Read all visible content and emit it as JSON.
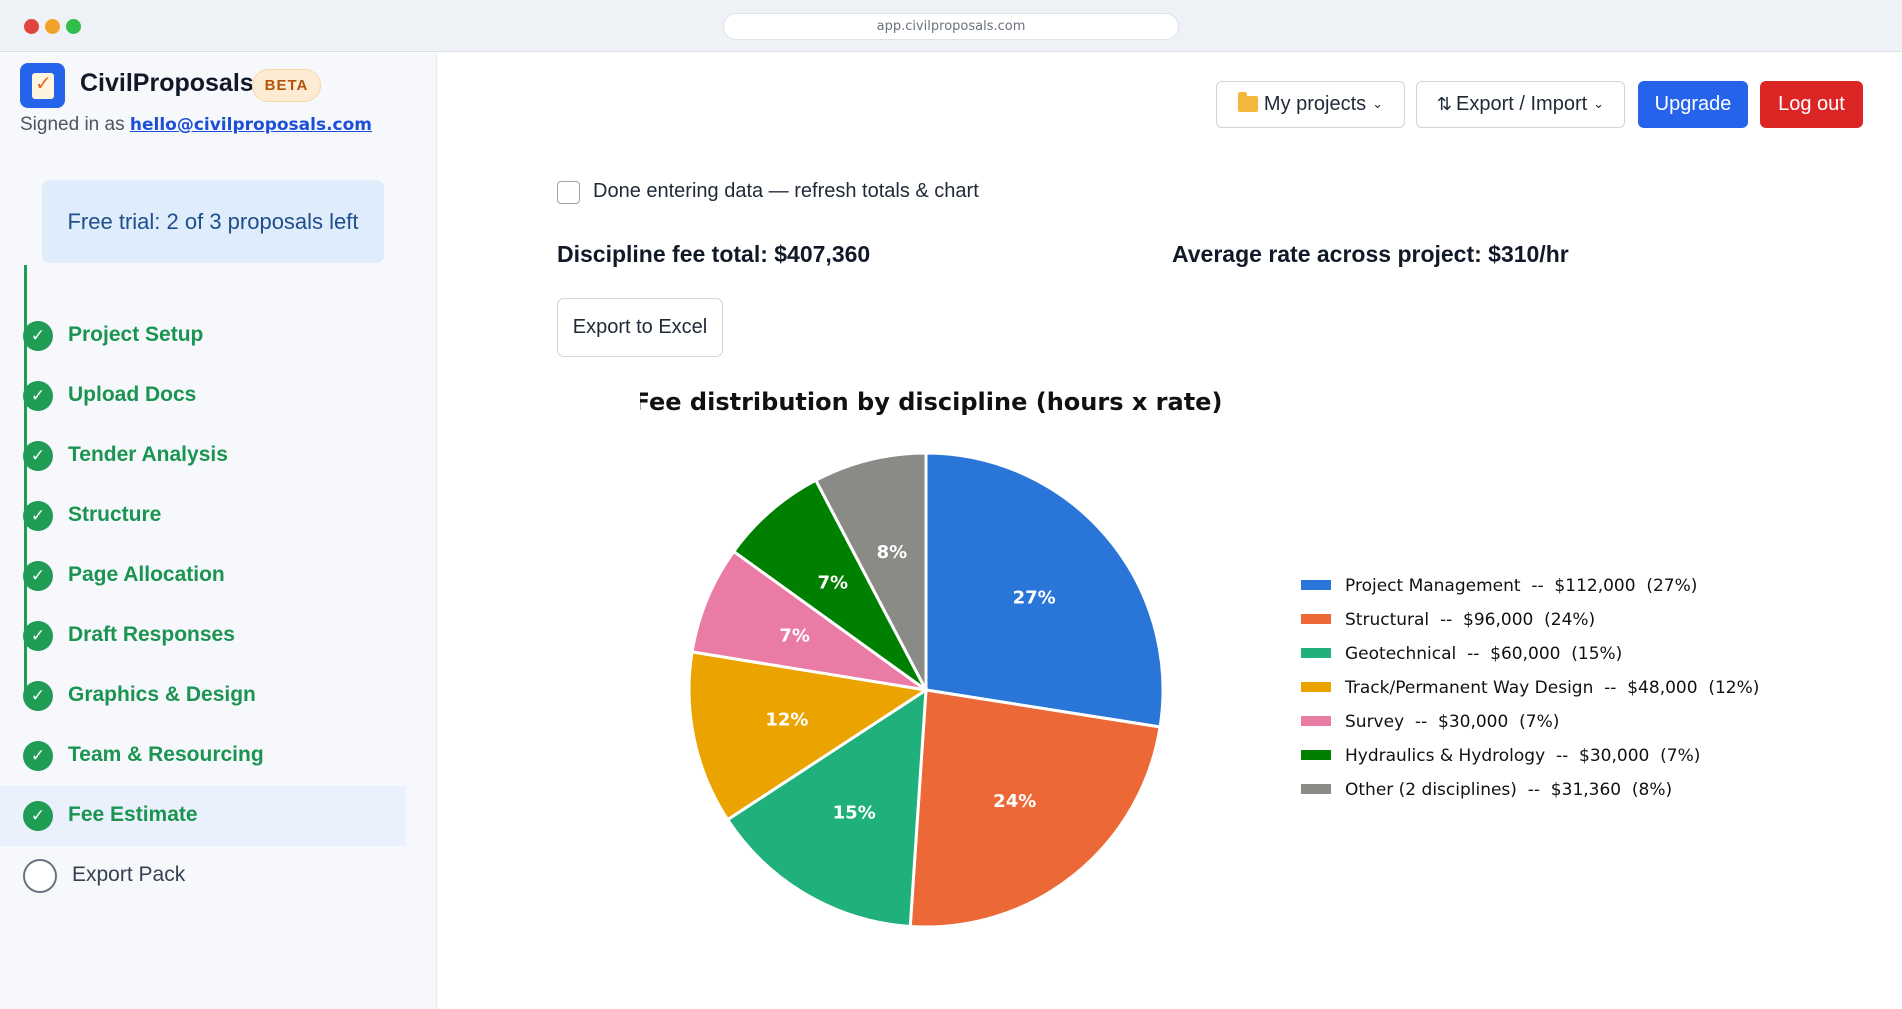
{
  "browser": {
    "url": "app.civilproposals.com"
  },
  "sidebar": {
    "app_name": "CivilProposals",
    "badge": "BETA",
    "signed_in_prefix": "Signed in as",
    "email": "hello@civilproposals.com",
    "trial_text": "Free trial: 2 of 3 proposals left",
    "steps": [
      {
        "label": "Project Setup",
        "done": true
      },
      {
        "label": "Upload Docs",
        "done": true
      },
      {
        "label": "Tender Analysis",
        "done": true
      },
      {
        "label": "Structure",
        "done": true
      },
      {
        "label": "Page Allocation",
        "done": true
      },
      {
        "label": "Draft Responses",
        "done": true
      },
      {
        "label": "Graphics & Design",
        "done": true
      },
      {
        "label": "Team & Resourcing",
        "done": true
      },
      {
        "label": "Fee Estimate",
        "done": true,
        "active": true
      },
      {
        "label": "Export Pack",
        "done": false
      }
    ],
    "check_glyph": "✓"
  },
  "toolbar": {
    "projects_label": "My projects",
    "export_import_label": "Export / Import",
    "upgrade_label": "Upgrade",
    "logout_label": "Log out",
    "icons": [
      "folder-icon",
      "sort-arrows-icon",
      "chevron-down-icon"
    ]
  },
  "main": {
    "checkbox_label": "Done entering data — refresh totals & chart",
    "checkbox_checked": false,
    "discipline_total": "Discipline fee total: $407,360",
    "average_rate": "Average rate across project: $310/hr",
    "export_excel_label": "Export to Excel"
  },
  "chart_data": {
    "type": "pie",
    "title": "Fee distribution by discipline (hours x rate)",
    "slices": [
      {
        "name": "Project Management",
        "value": 112000,
        "label": "Project Management  --  $112,000  (27%)",
        "pct_label": "27%",
        "color": "#2a76d8"
      },
      {
        "name": "Structural",
        "value": 96000,
        "label": "Structural  --  $96,000  (24%)",
        "pct_label": "24%",
        "color": "#ec6837"
      },
      {
        "name": "Geotechnical",
        "value": 60000,
        "label": "Geotechnical  --  $60,000  (15%)",
        "pct_label": "15%",
        "color": "#20b07b"
      },
      {
        "name": "Track/Permanent Way Design",
        "value": 48000,
        "label": "Track/Permanent Way Design  --  $48,000  (12%)",
        "pct_label": "12%",
        "color": "#eba300"
      },
      {
        "name": "Survey",
        "value": 30000,
        "label": "Survey  --  $30,000  (7%)",
        "pct_label": "7%",
        "color": "#e97ba5"
      },
      {
        "name": "Hydraulics & Hydrology",
        "value": 30000,
        "label": "Hydraulics & Hydrology  --  $30,000  (7%)",
        "pct_label": "7%",
        "color": "#008000"
      },
      {
        "name": "Other (2 disciplines)",
        "value": 31360,
        "label": "Other (2 disciplines)  --  $31,360  (8%)",
        "pct_label": "8%",
        "color": "#8a8a86"
      }
    ],
    "start": "top",
    "direction": "clockwise",
    "legend_position": "right"
  }
}
